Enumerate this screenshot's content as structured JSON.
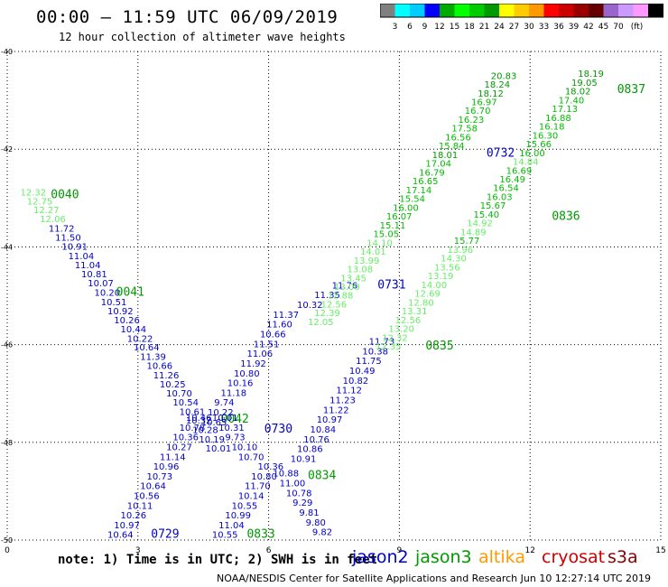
{
  "header": {
    "title": "00:00 – 11:59 UTC 06/09/2019",
    "subtitle": "12 hour collection of altimeter wave heights"
  },
  "colorbar": {
    "colors": [
      "#808080",
      "#00ffff",
      "#00ccff",
      "#0000ff",
      "#00aa00",
      "#00ff00",
      "#00cc00",
      "#009900",
      "#ffff00",
      "#ffcc00",
      "#ff9900",
      "#ff0000",
      "#cc0000",
      "#990000",
      "#660000",
      "#9966cc",
      "#cc99ff",
      "#ff99ff",
      "#000000"
    ],
    "labels": [
      "3",
      "6",
      "9",
      "12",
      "15",
      "18",
      "21",
      "24",
      "27",
      "30",
      "33",
      "36",
      "39",
      "42",
      "45",
      "70",
      "(ft)"
    ]
  },
  "note": "note: 1) Time is in UTC; 2) SWH is in feet",
  "satellites": [
    {
      "name": "jason2",
      "color": "#0000cc"
    },
    {
      "name": "jason3",
      "color": "#009900"
    },
    {
      "name": "altika",
      "color": "#ff9900"
    },
    {
      "name": "cryosat",
      "color": "#cc0000"
    },
    {
      "name": "s3a",
      "color": "#880000"
    }
  ],
  "footer": "NOAA/NESDIS Center for Satellite Applications and Research   Jun 10 12:27:14 UTC 2019",
  "chart_data": {
    "type": "scatter",
    "xlim": [
      0,
      15
    ],
    "ylim": [
      -50,
      -40
    ],
    "x_ticks": [
      0,
      3,
      6,
      9,
      12,
      15
    ],
    "y_ticks": [
      -40,
      -42,
      -44,
      -46,
      -48,
      -50
    ],
    "x_tick_labels": [
      "0",
      "3",
      "6",
      "9",
      "12",
      "15"
    ],
    "y_tick_labels": [
      "-40",
      "-42",
      "-44",
      "-46",
      "-48",
      "-50"
    ],
    "grid": true,
    "passes": [
      {
        "time_label": "0040",
        "label_pos": [
          1.0,
          -43.0
        ],
        "color": "#009900",
        "points": [
          {
            "x": 0.3,
            "lat": -42.95,
            "v": "12.32"
          },
          {
            "x": 0.45,
            "lat": -43.13,
            "v": "12.75"
          },
          {
            "x": 0.6,
            "lat": -43.31,
            "v": "12.27"
          },
          {
            "x": 0.75,
            "lat": -43.49,
            "v": "12.06"
          }
        ]
      },
      {
        "time_label": "0041",
        "label_pos": [
          2.5,
          -45.0
        ],
        "color": "#009900",
        "points": [
          {
            "x": 0.95,
            "lat": -43.69,
            "v": "11.72"
          },
          {
            "x": 1.1,
            "lat": -43.87,
            "v": "11.50"
          },
          {
            "x": 1.25,
            "lat": -44.06,
            "v": "10.91"
          },
          {
            "x": 1.4,
            "lat": -44.25,
            "v": "11.04"
          },
          {
            "x": 1.55,
            "lat": -44.44,
            "v": "11.04"
          },
          {
            "x": 1.7,
            "lat": -44.62,
            "v": "10.81"
          },
          {
            "x": 1.85,
            "lat": -44.81,
            "v": "10.07"
          },
          {
            "x": 2.0,
            "lat": -45.0,
            "v": "10.20"
          },
          {
            "x": 2.15,
            "lat": -45.19,
            "v": "10.51"
          },
          {
            "x": 2.3,
            "lat": -45.38,
            "v": "10.92"
          },
          {
            "x": 2.45,
            "lat": -45.56,
            "v": "10.26"
          },
          {
            "x": 2.6,
            "lat": -45.75,
            "v": "10.44"
          },
          {
            "x": 2.75,
            "lat": -45.94,
            "v": "10.22"
          },
          {
            "x": 2.9,
            "lat": -46.12,
            "v": "10.64"
          },
          {
            "x": 3.05,
            "lat": -46.31,
            "v": "11.39"
          },
          {
            "x": 3.2,
            "lat": -46.5,
            "v": "10.66"
          },
          {
            "x": 3.35,
            "lat": -46.69,
            "v": "11.26"
          },
          {
            "x": 3.5,
            "lat": -46.88,
            "v": "10.25"
          },
          {
            "x": 3.65,
            "lat": -47.06,
            "v": "10.70"
          },
          {
            "x": 3.8,
            "lat": -47.25,
            "v": "10.54"
          },
          {
            "x": 3.95,
            "lat": -47.44,
            "v": "10.61"
          },
          {
            "x": 4.1,
            "lat": -47.62,
            "v": "10.32"
          },
          {
            "x": 4.25,
            "lat": -47.81,
            "v": "10.28"
          },
          {
            "x": 4.4,
            "lat": -48.0,
            "v": "10.19"
          },
          {
            "x": 4.55,
            "lat": -48.19,
            "v": "10.01"
          }
        ]
      },
      {
        "time_label": "0042",
        "label_pos": [
          4.9,
          -47.6
        ],
        "color": "#009900",
        "points": []
      },
      {
        "time_label": "0729",
        "label_pos": [
          3.3,
          -49.95
        ],
        "color": "#0000cc",
        "points": [
          {
            "x": 2.3,
            "lat": -49.95,
            "v": "10.64"
          },
          {
            "x": 2.45,
            "lat": -49.76,
            "v": "10.97"
          },
          {
            "x": 2.6,
            "lat": -49.56,
            "v": "10.26"
          },
          {
            "x": 2.75,
            "lat": -49.36,
            "v": "10.11"
          },
          {
            "x": 2.9,
            "lat": -49.16,
            "v": "10.56"
          },
          {
            "x": 3.05,
            "lat": -48.96,
            "v": "10.64"
          },
          {
            "x": 3.2,
            "lat": -48.76,
            "v": "10.73"
          },
          {
            "x": 3.35,
            "lat": -48.56,
            "v": "10.96"
          },
          {
            "x": 3.5,
            "lat": -48.36,
            "v": "11.14"
          },
          {
            "x": 3.65,
            "lat": -48.16,
            "v": "10.27"
          },
          {
            "x": 3.8,
            "lat": -47.96,
            "v": "10.36"
          },
          {
            "x": 3.95,
            "lat": -47.76,
            "v": "10.78"
          },
          {
            "x": 4.1,
            "lat": -47.56,
            "v": "10.46"
          }
        ]
      },
      {
        "time_label": "0730",
        "label_pos": [
          5.9,
          -47.8
        ],
        "color": "#0000cc",
        "points": [
          {
            "x": 4.45,
            "lat": -47.65,
            "v": "10.65"
          },
          {
            "x": 4.6,
            "lat": -47.45,
            "v": "10.22"
          },
          {
            "x": 4.75,
            "lat": -47.25,
            "v": "9.74"
          },
          {
            "x": 4.9,
            "lat": -47.05,
            "v": "11.18"
          },
          {
            "x": 5.05,
            "lat": -46.85,
            "v": "10.16"
          },
          {
            "x": 5.2,
            "lat": -46.65,
            "v": "10.80"
          },
          {
            "x": 5.35,
            "lat": -46.45,
            "v": "11.92"
          },
          {
            "x": 5.5,
            "lat": -46.25,
            "v": "11.06"
          },
          {
            "x": 5.65,
            "lat": -46.05,
            "v": "11.51"
          },
          {
            "x": 5.8,
            "lat": -45.85,
            "v": "10.66"
          },
          {
            "x": 5.95,
            "lat": -45.65,
            "v": "11.60"
          },
          {
            "x": 6.1,
            "lat": -45.45,
            "v": "11.37"
          }
        ]
      },
      {
        "time_label": "0731",
        "label_pos": [
          8.5,
          -44.85
        ],
        "color": "#0000cc",
        "points": [
          {
            "x": 6.65,
            "lat": -45.25,
            "v": "10.32"
          },
          {
            "x": 7.05,
            "lat": -45.05,
            "v": "11.35"
          },
          {
            "x": 7.45,
            "lat": -44.85,
            "v": "11.76"
          }
        ]
      },
      {
        "time_label": "0732",
        "label_pos": [
          11.0,
          -42.15
        ],
        "color": "#0000cc",
        "points": []
      },
      {
        "time_label": "0833",
        "label_pos": [
          5.5,
          -49.95
        ],
        "color": "#009900",
        "points": [
          {
            "x": 4.7,
            "lat": -49.95,
            "v": "10.55"
          },
          {
            "x": 4.85,
            "lat": -49.76,
            "v": "11.04"
          },
          {
            "x": 5.0,
            "lat": -49.56,
            "v": "10.99"
          },
          {
            "x": 5.15,
            "lat": -49.36,
            "v": "10.55"
          },
          {
            "x": 5.3,
            "lat": -49.16,
            "v": "10.14"
          },
          {
            "x": 5.45,
            "lat": -48.96,
            "v": "11.70"
          },
          {
            "x": 5.6,
            "lat": -48.76,
            "v": "10.80"
          },
          {
            "x": 5.75,
            "lat": -48.56,
            "v": "10.36"
          },
          {
            "x": 5.3,
            "lat": -48.36,
            "v": "10.70"
          },
          {
            "x": 5.15,
            "lat": -48.16,
            "v": "10.10"
          },
          {
            "x": 5.0,
            "lat": -47.96,
            "v": "9.73"
          },
          {
            "x": 4.85,
            "lat": -47.76,
            "v": "10.31"
          },
          {
            "x": 4.7,
            "lat": -47.56,
            "v": "10.01"
          }
        ]
      },
      {
        "time_label": "0834",
        "label_pos": [
          6.9,
          -48.75
        ],
        "color": "#009900",
        "points": [
          {
            "x": 7.0,
            "lat": -49.9,
            "v": "9.82"
          },
          {
            "x": 6.85,
            "lat": -49.7,
            "v": "9.80"
          },
          {
            "x": 6.7,
            "lat": -49.5,
            "v": "9.81"
          },
          {
            "x": 6.55,
            "lat": -49.3,
            "v": "9.29"
          },
          {
            "x": 6.4,
            "lat": -49.1,
            "v": "10.78"
          },
          {
            "x": 6.25,
            "lat": -48.9,
            "v": "11.00"
          },
          {
            "x": 6.1,
            "lat": -48.7,
            "v": "10.88"
          },
          {
            "x": 6.5,
            "lat": -48.4,
            "v": "10.91"
          },
          {
            "x": 6.65,
            "lat": -48.2,
            "v": "10.86"
          },
          {
            "x": 6.8,
            "lat": -48.0,
            "v": "10.76"
          },
          {
            "x": 6.95,
            "lat": -47.8,
            "v": "10.84"
          },
          {
            "x": 7.1,
            "lat": -47.6,
            "v": "10.97"
          },
          {
            "x": 7.25,
            "lat": -47.4,
            "v": "11.22"
          },
          {
            "x": 7.4,
            "lat": -47.2,
            "v": "11.23"
          },
          {
            "x": 7.55,
            "lat": -47.0,
            "v": "11.12"
          },
          {
            "x": 7.7,
            "lat": -46.8,
            "v": "10.82"
          },
          {
            "x": 7.85,
            "lat": -46.6,
            "v": "10.49"
          },
          {
            "x": 8.0,
            "lat": -46.4,
            "v": "11.75"
          },
          {
            "x": 8.15,
            "lat": -46.2,
            "v": "10.38"
          },
          {
            "x": 8.3,
            "lat": -46.0,
            "v": "11.73"
          }
        ]
      },
      {
        "time_label": "0835",
        "label_pos": [
          9.6,
          -46.1
        ],
        "color": "#009900",
        "points": [
          {
            "x": 8.45,
            "lat": -46.1,
            "v": "12.35"
          },
          {
            "x": 8.6,
            "lat": -45.92,
            "v": "12.32"
          },
          {
            "x": 8.75,
            "lat": -45.74,
            "v": "13.20"
          },
          {
            "x": 8.9,
            "lat": -45.56,
            "v": "12.56"
          },
          {
            "x": 9.05,
            "lat": -45.38,
            "v": "13.31"
          },
          {
            "x": 9.2,
            "lat": -45.2,
            "v": "12.80"
          },
          {
            "x": 9.35,
            "lat": -45.02,
            "v": "12.69"
          },
          {
            "x": 9.5,
            "lat": -44.84,
            "v": "14.00"
          },
          {
            "x": 9.65,
            "lat": -44.66,
            "v": "13.19"
          },
          {
            "x": 9.8,
            "lat": -44.48,
            "v": "13.56"
          },
          {
            "x": 9.95,
            "lat": -44.3,
            "v": "14.30"
          },
          {
            "x": 10.1,
            "lat": -44.12,
            "v": "13.96"
          },
          {
            "x": 10.25,
            "lat": -43.94,
            "v": "15.77"
          },
          {
            "x": 10.4,
            "lat": -43.76,
            "v": "14.89"
          },
          {
            "x": 10.55,
            "lat": -43.58,
            "v": "14.92"
          },
          {
            "x": 10.7,
            "lat": -43.4,
            "v": "15.40"
          }
        ]
      },
      {
        "time_label": "0836",
        "label_pos": [
          12.5,
          -43.45
        ],
        "color": "#009900",
        "points": [
          {
            "x": 10.85,
            "lat": -43.22,
            "v": "15.67"
          },
          {
            "x": 11.0,
            "lat": -43.04,
            "v": "16.03"
          },
          {
            "x": 11.15,
            "lat": -42.86,
            "v": "16.54"
          },
          {
            "x": 11.3,
            "lat": -42.68,
            "v": "16.49"
          },
          {
            "x": 11.45,
            "lat": -42.5,
            "v": "16.69"
          },
          {
            "x": 11.6,
            "lat": -42.32,
            "v": "14.84"
          },
          {
            "x": 11.75,
            "lat": -42.14,
            "v": "16.00"
          },
          {
            "x": 11.9,
            "lat": -41.96,
            "v": "15.66"
          },
          {
            "x": 12.05,
            "lat": -41.78,
            "v": "16.30"
          },
          {
            "x": 12.2,
            "lat": -41.6,
            "v": "16.18"
          },
          {
            "x": 12.35,
            "lat": -41.42,
            "v": "16.88"
          }
        ]
      },
      {
        "time_label": "0837",
        "label_pos": [
          14.0,
          -40.85
        ],
        "color": "#009900",
        "points": [
          {
            "x": 12.5,
            "lat": -41.24,
            "v": "17.13"
          },
          {
            "x": 12.65,
            "lat": -41.06,
            "v": "17.40"
          },
          {
            "x": 12.8,
            "lat": -40.88,
            "v": "18.02"
          },
          {
            "x": 12.95,
            "lat": -40.7,
            "v": "19.05"
          },
          {
            "x": 13.1,
            "lat": -40.52,
            "v": "18.19"
          }
        ]
      },
      {
        "time_label": "",
        "label_pos": [
          0,
          0
        ],
        "color": "#009900",
        "points": [
          {
            "x": 6.9,
            "lat": -45.6,
            "v": "12.05"
          },
          {
            "x": 7.05,
            "lat": -45.42,
            "v": "12.39"
          },
          {
            "x": 7.2,
            "lat": -45.24,
            "v": "12.56"
          },
          {
            "x": 7.35,
            "lat": -45.06,
            "v": "12.88"
          },
          {
            "x": 7.5,
            "lat": -44.88,
            "v": "13.00"
          },
          {
            "x": 7.65,
            "lat": -44.7,
            "v": "13.45"
          },
          {
            "x": 7.8,
            "lat": -44.52,
            "v": "13.08"
          },
          {
            "x": 7.95,
            "lat": -44.34,
            "v": "13.99"
          },
          {
            "x": 8.1,
            "lat": -44.16,
            "v": "14.01"
          },
          {
            "x": 8.25,
            "lat": -43.98,
            "v": "14.10"
          },
          {
            "x": 8.4,
            "lat": -43.8,
            "v": "15.05"
          },
          {
            "x": 8.55,
            "lat": -43.62,
            "v": "15.11"
          },
          {
            "x": 8.7,
            "lat": -43.44,
            "v": "16.07"
          },
          {
            "x": 8.85,
            "lat": -43.26,
            "v": "16.00"
          },
          {
            "x": 9.0,
            "lat": -43.08,
            "v": "15.54"
          },
          {
            "x": 9.15,
            "lat": -42.9,
            "v": "17.14"
          },
          {
            "x": 9.3,
            "lat": -42.72,
            "v": "16.65"
          },
          {
            "x": 9.45,
            "lat": -42.54,
            "v": "16.79"
          },
          {
            "x": 9.6,
            "lat": -42.36,
            "v": "17.04"
          },
          {
            "x": 9.75,
            "lat": -42.18,
            "v": "18.01"
          },
          {
            "x": 9.9,
            "lat": -42.0,
            "v": "15.84"
          },
          {
            "x": 10.05,
            "lat": -41.82,
            "v": "16.56"
          },
          {
            "x": 10.2,
            "lat": -41.64,
            "v": "17.58"
          },
          {
            "x": 10.35,
            "lat": -41.46,
            "v": "16.23"
          },
          {
            "x": 10.5,
            "lat": -41.28,
            "v": "16.70"
          },
          {
            "x": 10.65,
            "lat": -41.1,
            "v": "16.97"
          },
          {
            "x": 10.8,
            "lat": -40.92,
            "v": "18.12"
          },
          {
            "x": 10.95,
            "lat": -40.74,
            "v": "18.24"
          },
          {
            "x": 11.1,
            "lat": -40.56,
            "v": "20.83"
          }
        ]
      }
    ]
  }
}
